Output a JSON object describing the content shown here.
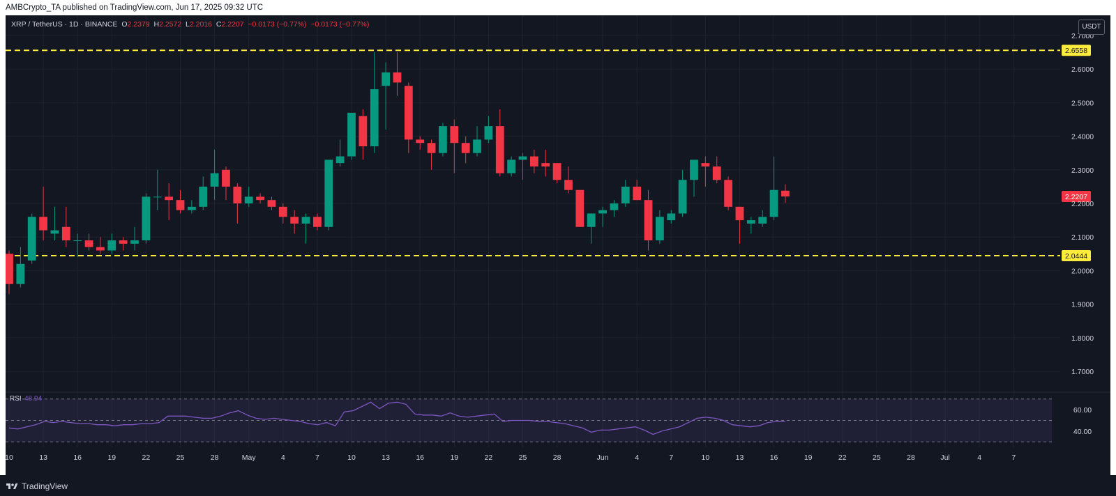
{
  "header": {
    "published_text": "AMBCrypto_TA published on TradingView.com, Jun 17, 2025 09:32 UTC"
  },
  "legend": {
    "symbol": "XRP / TetherUS · 1D · BINANCE",
    "o_label": "O",
    "o_value": "2.2379",
    "h_label": "H",
    "h_value": "2.2572",
    "l_label": "L",
    "l_value": "2.2016",
    "c_label": "C",
    "c_value": "2.2207",
    "change": "−0.0173 (−0.77%)",
    "change2": "−0.0173 (−0.77%)"
  },
  "currency_button": "USDT",
  "footer": {
    "brand": "TradingView"
  },
  "colors": {
    "up": "#089981",
    "down": "#f23645",
    "level": "#ffeb3b",
    "rsi_line": "#7e57c2",
    "background": "#131722",
    "grid": "#1e222d",
    "text": "#d1d4dc"
  },
  "chart_data": [
    {
      "type": "candlestick",
      "title": "XRP / TetherUS · 1D · BINANCE",
      "y_ticks": [
        "2.7000",
        "2.6000",
        "2.5000",
        "2.4000",
        "2.3000",
        "2.2000",
        "2.1000",
        "2.0000",
        "1.9000",
        "1.8000",
        "1.7000"
      ],
      "ylim": [
        1.64,
        2.76
      ],
      "x_ticks": [
        "10",
        "13",
        "16",
        "19",
        "22",
        "25",
        "28",
        "May",
        "4",
        "7",
        "10",
        "13",
        "16",
        "19",
        "22",
        "25",
        "28",
        "Jun",
        "4",
        "7",
        "10",
        "13",
        "16",
        "19",
        "22",
        "25",
        "28",
        "Jul",
        "4",
        "7"
      ],
      "x_range": [
        "2025-04-10",
        "2025-07-09"
      ],
      "horizontal_levels": [
        {
          "value": 2.6558,
          "label": "2.6558"
        },
        {
          "value": 2.0444,
          "label": "2.0444"
        }
      ],
      "last_price": {
        "value": 2.2207,
        "label": "2.2207"
      },
      "candles": [
        {
          "d": "2025-04-10",
          "o": 2.05,
          "h": 2.06,
          "l": 1.93,
          "c": 1.96
        },
        {
          "d": "2025-04-11",
          "o": 1.96,
          "h": 2.07,
          "l": 1.95,
          "c": 2.02
        },
        {
          "d": "2025-04-12",
          "o": 2.03,
          "h": 2.17,
          "l": 2.02,
          "c": 2.16
        },
        {
          "d": "2025-04-13",
          "o": 2.16,
          "h": 2.25,
          "l": 2.09,
          "c": 2.12
        },
        {
          "d": "2025-04-14",
          "o": 2.11,
          "h": 2.19,
          "l": 2.09,
          "c": 2.12
        },
        {
          "d": "2025-04-15",
          "o": 2.13,
          "h": 2.19,
          "l": 2.07,
          "c": 2.09
        },
        {
          "d": "2025-04-16",
          "o": 2.09,
          "h": 2.11,
          "l": 2.04,
          "c": 2.09
        },
        {
          "d": "2025-04-17",
          "o": 2.09,
          "h": 2.11,
          "l": 2.06,
          "c": 2.07
        },
        {
          "d": "2025-04-18",
          "o": 2.07,
          "h": 2.1,
          "l": 2.05,
          "c": 2.06
        },
        {
          "d": "2025-04-19",
          "o": 2.06,
          "h": 2.11,
          "l": 2.05,
          "c": 2.09
        },
        {
          "d": "2025-04-20",
          "o": 2.09,
          "h": 2.1,
          "l": 2.06,
          "c": 2.08
        },
        {
          "d": "2025-04-21",
          "o": 2.08,
          "h": 2.13,
          "l": 2.06,
          "c": 2.09
        },
        {
          "d": "2025-04-22",
          "o": 2.09,
          "h": 2.23,
          "l": 2.08,
          "c": 2.22
        },
        {
          "d": "2025-04-23",
          "o": 2.22,
          "h": 2.3,
          "l": 2.18,
          "c": 2.22
        },
        {
          "d": "2025-04-24",
          "o": 2.22,
          "h": 2.26,
          "l": 2.15,
          "c": 2.21
        },
        {
          "d": "2025-04-25",
          "o": 2.21,
          "h": 2.24,
          "l": 2.17,
          "c": 2.18
        },
        {
          "d": "2025-04-26",
          "o": 2.18,
          "h": 2.21,
          "l": 2.17,
          "c": 2.19
        },
        {
          "d": "2025-04-27",
          "o": 2.19,
          "h": 2.28,
          "l": 2.18,
          "c": 2.25
        },
        {
          "d": "2025-04-28",
          "o": 2.25,
          "h": 2.36,
          "l": 2.21,
          "c": 2.29
        },
        {
          "d": "2025-04-29",
          "o": 2.3,
          "h": 2.31,
          "l": 2.21,
          "c": 2.25
        },
        {
          "d": "2025-04-30",
          "o": 2.25,
          "h": 2.26,
          "l": 2.14,
          "c": 2.2
        },
        {
          "d": "2025-05-01",
          "o": 2.2,
          "h": 2.25,
          "l": 2.19,
          "c": 2.22
        },
        {
          "d": "2025-05-02",
          "o": 2.22,
          "h": 2.23,
          "l": 2.2,
          "c": 2.21
        },
        {
          "d": "2025-05-03",
          "o": 2.21,
          "h": 2.22,
          "l": 2.18,
          "c": 2.19
        },
        {
          "d": "2025-05-04",
          "o": 2.19,
          "h": 2.2,
          "l": 2.14,
          "c": 2.16
        },
        {
          "d": "2025-05-05",
          "o": 2.16,
          "h": 2.18,
          "l": 2.11,
          "c": 2.14
        },
        {
          "d": "2025-05-06",
          "o": 2.14,
          "h": 2.17,
          "l": 2.08,
          "c": 2.16
        },
        {
          "d": "2025-05-07",
          "o": 2.16,
          "h": 2.17,
          "l": 2.12,
          "c": 2.13
        },
        {
          "d": "2025-05-08",
          "o": 2.13,
          "h": 2.33,
          "l": 2.12,
          "c": 2.33
        },
        {
          "d": "2025-05-09",
          "o": 2.32,
          "h": 2.39,
          "l": 2.31,
          "c": 2.34
        },
        {
          "d": "2025-05-10",
          "o": 2.34,
          "h": 2.47,
          "l": 2.33,
          "c": 2.47
        },
        {
          "d": "2025-05-11",
          "o": 2.46,
          "h": 2.48,
          "l": 2.33,
          "c": 2.37
        },
        {
          "d": "2025-05-12",
          "o": 2.37,
          "h": 2.65,
          "l": 2.35,
          "c": 2.54
        },
        {
          "d": "2025-05-13",
          "o": 2.55,
          "h": 2.62,
          "l": 2.42,
          "c": 2.59
        },
        {
          "d": "2025-05-14",
          "o": 2.59,
          "h": 2.65,
          "l": 2.52,
          "c": 2.56
        },
        {
          "d": "2025-05-15",
          "o": 2.55,
          "h": 2.56,
          "l": 2.35,
          "c": 2.39
        },
        {
          "d": "2025-05-16",
          "o": 2.39,
          "h": 2.4,
          "l": 2.36,
          "c": 2.38
        },
        {
          "d": "2025-05-17",
          "o": 2.38,
          "h": 2.39,
          "l": 2.3,
          "c": 2.35
        },
        {
          "d": "2025-05-18",
          "o": 2.35,
          "h": 2.44,
          "l": 2.34,
          "c": 2.43
        },
        {
          "d": "2025-05-19",
          "o": 2.43,
          "h": 2.45,
          "l": 2.29,
          "c": 2.38
        },
        {
          "d": "2025-05-20",
          "o": 2.38,
          "h": 2.4,
          "l": 2.32,
          "c": 2.35
        },
        {
          "d": "2025-05-21",
          "o": 2.35,
          "h": 2.43,
          "l": 2.34,
          "c": 2.39
        },
        {
          "d": "2025-05-22",
          "o": 2.39,
          "h": 2.46,
          "l": 2.38,
          "c": 2.43
        },
        {
          "d": "2025-05-23",
          "o": 2.43,
          "h": 2.48,
          "l": 2.28,
          "c": 2.29
        },
        {
          "d": "2025-05-24",
          "o": 2.29,
          "h": 2.34,
          "l": 2.28,
          "c": 2.33
        },
        {
          "d": "2025-05-25",
          "o": 2.33,
          "h": 2.35,
          "l": 2.27,
          "c": 2.34
        },
        {
          "d": "2025-05-26",
          "o": 2.34,
          "h": 2.36,
          "l": 2.29,
          "c": 2.31
        },
        {
          "d": "2025-05-27",
          "o": 2.32,
          "h": 2.36,
          "l": 2.28,
          "c": 2.31
        },
        {
          "d": "2025-05-28",
          "o": 2.32,
          "h": 2.32,
          "l": 2.26,
          "c": 2.27
        },
        {
          "d": "2025-05-29",
          "o": 2.27,
          "h": 2.31,
          "l": 2.23,
          "c": 2.24
        },
        {
          "d": "2025-05-30",
          "o": 2.24,
          "h": 2.24,
          "l": 2.13,
          "c": 2.13
        },
        {
          "d": "2025-05-31",
          "o": 2.13,
          "h": 2.17,
          "l": 2.08,
          "c": 2.17
        },
        {
          "d": "2025-06-01",
          "o": 2.17,
          "h": 2.19,
          "l": 2.13,
          "c": 2.18
        },
        {
          "d": "2025-06-02",
          "o": 2.18,
          "h": 2.21,
          "l": 2.16,
          "c": 2.2
        },
        {
          "d": "2025-06-03",
          "o": 2.2,
          "h": 2.27,
          "l": 2.19,
          "c": 2.25
        },
        {
          "d": "2025-06-04",
          "o": 2.25,
          "h": 2.27,
          "l": 2.21,
          "c": 2.21
        },
        {
          "d": "2025-06-05",
          "o": 2.21,
          "h": 2.24,
          "l": 2.06,
          "c": 2.09
        },
        {
          "d": "2025-06-06",
          "o": 2.09,
          "h": 2.18,
          "l": 2.08,
          "c": 2.16
        },
        {
          "d": "2025-06-07",
          "o": 2.15,
          "h": 2.18,
          "l": 2.14,
          "c": 2.17
        },
        {
          "d": "2025-06-08",
          "o": 2.17,
          "h": 2.3,
          "l": 2.16,
          "c": 2.27
        },
        {
          "d": "2025-06-09",
          "o": 2.27,
          "h": 2.33,
          "l": 2.22,
          "c": 2.33
        },
        {
          "d": "2025-06-10",
          "o": 2.32,
          "h": 2.34,
          "l": 2.25,
          "c": 2.31
        },
        {
          "d": "2025-06-11",
          "o": 2.31,
          "h": 2.34,
          "l": 2.26,
          "c": 2.27
        },
        {
          "d": "2025-06-12",
          "o": 2.27,
          "h": 2.28,
          "l": 2.18,
          "c": 2.19
        },
        {
          "d": "2025-06-13",
          "o": 2.19,
          "h": 2.19,
          "l": 2.08,
          "c": 2.15
        },
        {
          "d": "2025-06-14",
          "o": 2.14,
          "h": 2.16,
          "l": 2.11,
          "c": 2.15
        },
        {
          "d": "2025-06-15",
          "o": 2.14,
          "h": 2.18,
          "l": 2.13,
          "c": 2.16
        },
        {
          "d": "2025-06-16",
          "o": 2.16,
          "h": 2.34,
          "l": 2.15,
          "c": 2.24
        },
        {
          "d": "2025-06-17",
          "o": 2.2379,
          "h": 2.2572,
          "l": 2.2016,
          "c": 2.2207
        }
      ]
    },
    {
      "type": "line",
      "title": "RSI",
      "series": [
        {
          "name": "RSI",
          "last_value": "48.94"
        }
      ],
      "y_ticks": [
        "60.00",
        "40.00"
      ],
      "ylim": [
        25,
        75
      ],
      "band": [
        30,
        70
      ],
      "midline": 50,
      "values": [
        43,
        42,
        44,
        46,
        49,
        48,
        49,
        48,
        47,
        47,
        46,
        46,
        45,
        46,
        46,
        47,
        47,
        48,
        54,
        54,
        54,
        53,
        52,
        52,
        54,
        57,
        59,
        55,
        52,
        51,
        52,
        51,
        50,
        49,
        47,
        46,
        48,
        45,
        58,
        59,
        63,
        67,
        61,
        66,
        67,
        65,
        56,
        55,
        55,
        54,
        57,
        54,
        53,
        54,
        55,
        56,
        49,
        50,
        50,
        50,
        49,
        49,
        48,
        47,
        45,
        43,
        39,
        41,
        41,
        42,
        43,
        44,
        41,
        37,
        40,
        42,
        44,
        48,
        52,
        53,
        52,
        50,
        46,
        45,
        44,
        45,
        48,
        49,
        48.94
      ]
    }
  ]
}
